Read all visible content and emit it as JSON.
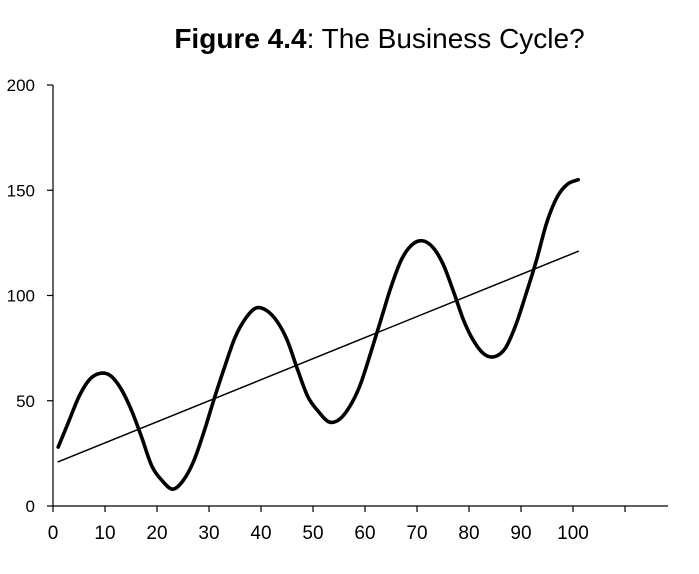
{
  "chart_data": {
    "type": "line",
    "title_bold": "Figure 4.4",
    "title_rest": ": The Business Cycle?",
    "xlabel": "",
    "ylabel": "",
    "xlim": [
      0,
      110
    ],
    "ylim": [
      0,
      200
    ],
    "x_ticks": [
      0,
      10,
      20,
      30,
      40,
      50,
      60,
      70,
      80,
      90,
      100
    ],
    "y_ticks": [
      0,
      50,
      100,
      150,
      200
    ],
    "grid": false,
    "legend": "none",
    "series": [
      {
        "style": "cycle",
        "color": "#000000",
        "x": [
          1,
          3,
          5,
          7,
          9,
          11,
          13,
          15,
          17,
          19,
          21,
          23,
          25,
          27,
          29,
          31,
          33,
          35,
          37,
          39,
          41,
          43,
          45,
          47,
          49,
          51,
          53,
          55,
          57,
          59,
          61,
          63,
          65,
          67,
          69,
          71,
          73,
          75,
          77,
          79,
          81,
          83,
          85,
          87,
          89,
          91,
          93,
          95,
          97,
          99,
          101
        ],
        "y": [
          28,
          40,
          52,
          60,
          63,
          62,
          56,
          46,
          33,
          19,
          12,
          8,
          12,
          21,
          35,
          51,
          66,
          80,
          89,
          94,
          93,
          88,
          79,
          65,
          52,
          45,
          40,
          41,
          47,
          57,
          72,
          88,
          104,
          117,
          124,
          126,
          123,
          115,
          102,
          88,
          78,
          72,
          71,
          75,
          86,
          101,
          117,
          135,
          147,
          153,
          155
        ]
      },
      {
        "style": "trend",
        "color": "#000000",
        "x": [
          1,
          101
        ],
        "y": [
          21,
          121
        ]
      }
    ]
  }
}
